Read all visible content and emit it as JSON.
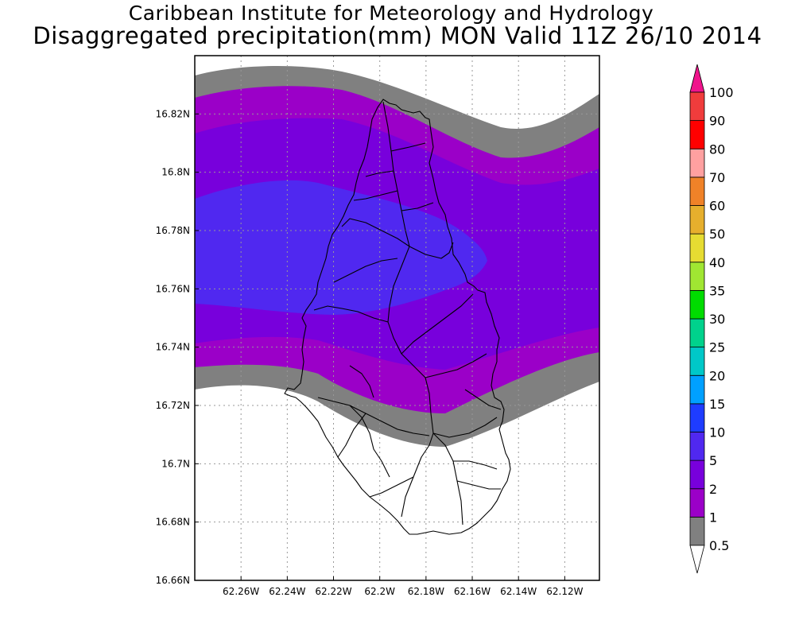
{
  "title": {
    "line1": "Caribbean Institute for Meteorology and Hydrology",
    "line2": "Disaggregated precipitation(mm) MON Valid 11Z 26/10 2014"
  },
  "map": {
    "lon_range": [
      -62.28,
      -62.105
    ],
    "lat_range": [
      16.66,
      16.84
    ],
    "lon_ticks": [
      {
        "value": -62.26,
        "label": "62.26W"
      },
      {
        "value": -62.24,
        "label": "62.24W"
      },
      {
        "value": -62.22,
        "label": "62.22W"
      },
      {
        "value": -62.2,
        "label": "62.2W"
      },
      {
        "value": -62.18,
        "label": "62.18W"
      },
      {
        "value": -62.16,
        "label": "62.16W"
      },
      {
        "value": -62.14,
        "label": "62.14W"
      },
      {
        "value": -62.12,
        "label": "62.12W"
      }
    ],
    "lat_ticks": [
      {
        "value": 16.82,
        "label": "16.82N"
      },
      {
        "value": 16.8,
        "label": "16.8N"
      },
      {
        "value": 16.78,
        "label": "16.78N"
      },
      {
        "value": 16.76,
        "label": "16.76N"
      },
      {
        "value": 16.74,
        "label": "16.74N"
      },
      {
        "value": 16.72,
        "label": "16.72N"
      },
      {
        "value": 16.7,
        "label": "16.7N"
      },
      {
        "value": 16.68,
        "label": "16.68N"
      },
      {
        "value": 16.66,
        "label": "16.66N"
      }
    ],
    "grid": true
  },
  "legend": {
    "levels": [
      {
        "label": "0.5",
        "color": "#ffffff"
      },
      {
        "label": "1",
        "color": "#808080"
      },
      {
        "label": "2",
        "color": "#9b00c8"
      },
      {
        "label": "5",
        "color": "#7800dc"
      },
      {
        "label": "10",
        "color": "#5028f0"
      },
      {
        "label": "15",
        "color": "#1e3cff"
      },
      {
        "label": "20",
        "color": "#00a0ff"
      },
      {
        "label": "25",
        "color": "#00c8c8"
      },
      {
        "label": "30",
        "color": "#00d28c"
      },
      {
        "label": "35",
        "color": "#00dc00"
      },
      {
        "label": "40",
        "color": "#a0e632"
      },
      {
        "label": "50",
        "color": "#e6dc32"
      },
      {
        "label": "60",
        "color": "#e6af2d"
      },
      {
        "label": "70",
        "color": "#f08228"
      },
      {
        "label": "80",
        "color": "#ffa0a0"
      },
      {
        "label": "90",
        "color": "#ff0000"
      },
      {
        "label": "100",
        "color": "#f03c3c"
      }
    ],
    "over_color": "#f0148c",
    "under_color": "#ffffff"
  },
  "colors": {
    "band_0p5_1": "#808080",
    "band_1_2": "#9b00c8",
    "band_2_5": "#7800dc",
    "band_5_10": "#5028f0",
    "outline": "#000000"
  }
}
